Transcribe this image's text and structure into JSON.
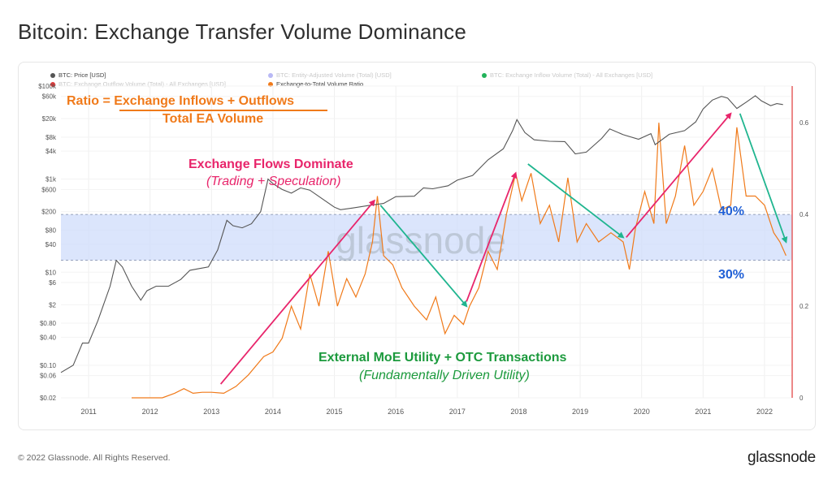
{
  "title": "Bitcoin: Exchange Transfer Volume Dominance",
  "footer": "© 2022 Glassnode. All Rights Reserved.",
  "logo": "glassnode",
  "watermark": "glassnode",
  "legend": [
    {
      "label": "BTC: Price [USD]",
      "color": "#555555",
      "faded": false
    },
    {
      "label": "BTC: Entity-Adjusted Volume (Total) [USD]",
      "color": "#3a3ae6",
      "faded": true
    },
    {
      "label": "BTC: Exchange Inflow Volume (Total) - All Exchanges [USD]",
      "color": "#22b35a",
      "faded": true
    },
    {
      "label": "BTC: Exchange Outflow Volume (Total) - All Exchanges [USD]",
      "color": "#e03a3a",
      "faded": true
    },
    {
      "label": "Exchange-to-Total Volume Ratio",
      "color": "#f07a1a",
      "faded": false
    }
  ],
  "annotations": {
    "ratio_line1": "Ratio = Exchange Inflows + Outflows",
    "ratio_line2": "Total EA Volume",
    "flows_title": "Exchange Flows Dominate",
    "flows_sub": "(Trading + Speculation)",
    "external_title": "External MoE Utility + OTC Transactions",
    "external_sub": "(Fundamentally Driven Utility)",
    "band_upper": "40%",
    "band_lower": "30%"
  },
  "colors": {
    "price": "#555555",
    "ratio": "#f07a1a",
    "band": "#cfdcfb",
    "pink_arrow": "#e8256b",
    "green_arrow": "#1fb58f",
    "orange_text": "#f07a1a",
    "pink_text": "#e8256b",
    "green_text": "#1c9a3d",
    "blue_text": "#1f5fd6",
    "red_axis": "#e03a3a"
  },
  "chart_data": {
    "type": "line",
    "x_ticks": [
      "2011",
      "2012",
      "2013",
      "2014",
      "2015",
      "2016",
      "2017",
      "2018",
      "2019",
      "2020",
      "2021",
      "2022"
    ],
    "y_left_ticks": [
      "$100k",
      "$60k",
      "$20k",
      "$8k",
      "$4k",
      "$1k",
      "$600",
      "$200",
      "$80",
      "$40",
      "$10",
      "$6",
      "$2",
      "$0.80",
      "$0.40",
      "$0.10",
      "$0.06",
      "$0.02"
    ],
    "y_left_scale": "log",
    "y_left_range": [
      0.02,
      100000
    ],
    "y_right_ticks": [
      "0",
      "0.2",
      "0.4",
      "0.6"
    ],
    "y_right_range": [
      0,
      0.68
    ],
    "highlight_band": [
      0.3,
      0.4
    ],
    "series": [
      {
        "name": "BTC: Price [USD]",
        "axis": "left",
        "points": [
          [
            2010.55,
            0.07
          ],
          [
            2010.75,
            0.1
          ],
          [
            2010.9,
            0.3
          ],
          [
            2011.0,
            0.3
          ],
          [
            2011.15,
            0.9
          ],
          [
            2011.35,
            5
          ],
          [
            2011.45,
            18
          ],
          [
            2011.55,
            13
          ],
          [
            2011.7,
            5
          ],
          [
            2011.85,
            2.5
          ],
          [
            2011.95,
            4
          ],
          [
            2012.1,
            5
          ],
          [
            2012.3,
            5
          ],
          [
            2012.5,
            7
          ],
          [
            2012.65,
            11
          ],
          [
            2012.8,
            12
          ],
          [
            2012.95,
            13
          ],
          [
            2013.1,
            30
          ],
          [
            2013.25,
            130
          ],
          [
            2013.35,
            100
          ],
          [
            2013.5,
            90
          ],
          [
            2013.65,
            110
          ],
          [
            2013.8,
            200
          ],
          [
            2013.92,
            1000
          ],
          [
            2014.0,
            800
          ],
          [
            2014.15,
            600
          ],
          [
            2014.3,
            500
          ],
          [
            2014.45,
            650
          ],
          [
            2014.6,
            580
          ],
          [
            2014.8,
            380
          ],
          [
            2015.0,
            250
          ],
          [
            2015.1,
            220
          ],
          [
            2015.3,
            240
          ],
          [
            2015.55,
            270
          ],
          [
            2015.8,
            300
          ],
          [
            2016.0,
            420
          ],
          [
            2016.3,
            430
          ],
          [
            2016.45,
            650
          ],
          [
            2016.6,
            620
          ],
          [
            2016.85,
            720
          ],
          [
            2017.0,
            950
          ],
          [
            2017.25,
            1200
          ],
          [
            2017.5,
            2600
          ],
          [
            2017.75,
            4500
          ],
          [
            2017.9,
            11000
          ],
          [
            2017.97,
            19000
          ],
          [
            2018.1,
            10000
          ],
          [
            2018.25,
            7000
          ],
          [
            2018.5,
            6500
          ],
          [
            2018.75,
            6400
          ],
          [
            2018.92,
            3500
          ],
          [
            2019.1,
            3800
          ],
          [
            2019.35,
            7500
          ],
          [
            2019.48,
            12000
          ],
          [
            2019.7,
            9000
          ],
          [
            2019.95,
            7200
          ],
          [
            2020.15,
            9500
          ],
          [
            2020.22,
            5500
          ],
          [
            2020.45,
            9200
          ],
          [
            2020.7,
            11000
          ],
          [
            2020.88,
            17000
          ],
          [
            2021.0,
            32000
          ],
          [
            2021.15,
            50000
          ],
          [
            2021.3,
            60000
          ],
          [
            2021.4,
            55000
          ],
          [
            2021.55,
            33000
          ],
          [
            2021.7,
            45000
          ],
          [
            2021.85,
            62000
          ],
          [
            2021.95,
            48000
          ],
          [
            2022.1,
            38000
          ],
          [
            2022.2,
            42000
          ],
          [
            2022.3,
            40000
          ]
        ]
      },
      {
        "name": "Exchange-to-Total Volume Ratio",
        "axis": "right",
        "points": [
          [
            2011.7,
            0.0
          ],
          [
            2012.2,
            0.0
          ],
          [
            2012.4,
            0.01
          ],
          [
            2012.55,
            0.02
          ],
          [
            2012.7,
            0.01
          ],
          [
            2012.85,
            0.012
          ],
          [
            2013.0,
            0.012
          ],
          [
            2013.2,
            0.01
          ],
          [
            2013.4,
            0.025
          ],
          [
            2013.6,
            0.05
          ],
          [
            2013.85,
            0.09
          ],
          [
            2014.0,
            0.1
          ],
          [
            2014.15,
            0.13
          ],
          [
            2014.3,
            0.2
          ],
          [
            2014.45,
            0.15
          ],
          [
            2014.6,
            0.27
          ],
          [
            2014.75,
            0.2
          ],
          [
            2014.9,
            0.32
          ],
          [
            2015.05,
            0.2
          ],
          [
            2015.2,
            0.26
          ],
          [
            2015.35,
            0.22
          ],
          [
            2015.5,
            0.27
          ],
          [
            2015.62,
            0.34
          ],
          [
            2015.7,
            0.44
          ],
          [
            2015.8,
            0.31
          ],
          [
            2015.95,
            0.29
          ],
          [
            2016.1,
            0.24
          ],
          [
            2016.3,
            0.2
          ],
          [
            2016.5,
            0.17
          ],
          [
            2016.65,
            0.22
          ],
          [
            2016.8,
            0.14
          ],
          [
            2016.95,
            0.18
          ],
          [
            2017.1,
            0.16
          ],
          [
            2017.2,
            0.2
          ],
          [
            2017.35,
            0.24
          ],
          [
            2017.5,
            0.32
          ],
          [
            2017.65,
            0.28
          ],
          [
            2017.8,
            0.4
          ],
          [
            2017.95,
            0.49
          ],
          [
            2018.05,
            0.43
          ],
          [
            2018.2,
            0.49
          ],
          [
            2018.35,
            0.38
          ],
          [
            2018.5,
            0.42
          ],
          [
            2018.65,
            0.34
          ],
          [
            2018.8,
            0.48
          ],
          [
            2018.95,
            0.34
          ],
          [
            2019.1,
            0.38
          ],
          [
            2019.3,
            0.34
          ],
          [
            2019.5,
            0.36
          ],
          [
            2019.7,
            0.34
          ],
          [
            2019.8,
            0.28
          ],
          [
            2019.9,
            0.37
          ],
          [
            2020.05,
            0.45
          ],
          [
            2020.2,
            0.38
          ],
          [
            2020.28,
            0.6
          ],
          [
            2020.4,
            0.38
          ],
          [
            2020.55,
            0.44
          ],
          [
            2020.7,
            0.55
          ],
          [
            2020.85,
            0.42
          ],
          [
            2021.0,
            0.45
          ],
          [
            2021.15,
            0.5
          ],
          [
            2021.3,
            0.41
          ],
          [
            2021.45,
            0.42
          ],
          [
            2021.55,
            0.59
          ],
          [
            2021.7,
            0.44
          ],
          [
            2021.85,
            0.44
          ],
          [
            2022.0,
            0.42
          ],
          [
            2022.15,
            0.36
          ],
          [
            2022.25,
            0.34
          ],
          [
            2022.35,
            0.31
          ]
        ]
      }
    ],
    "arrows": [
      {
        "kind": "pink",
        "from": [
          2013.15,
          0.03
        ],
        "to": [
          2015.65,
          0.43
        ]
      },
      {
        "kind": "green",
        "from": [
          2015.75,
          0.42
        ],
        "to": [
          2017.15,
          0.2
        ]
      },
      {
        "kind": "pink",
        "from": [
          2017.15,
          0.21
        ],
        "to": [
          2017.95,
          0.49
        ]
      },
      {
        "kind": "green",
        "from": [
          2018.15,
          0.51
        ],
        "to": [
          2019.7,
          0.35
        ]
      },
      {
        "kind": "pink",
        "from": [
          2019.75,
          0.35
        ],
        "to": [
          2021.45,
          0.62
        ]
      },
      {
        "kind": "green",
        "from": [
          2021.6,
          0.62
        ],
        "to": [
          2022.35,
          0.34
        ]
      }
    ]
  }
}
